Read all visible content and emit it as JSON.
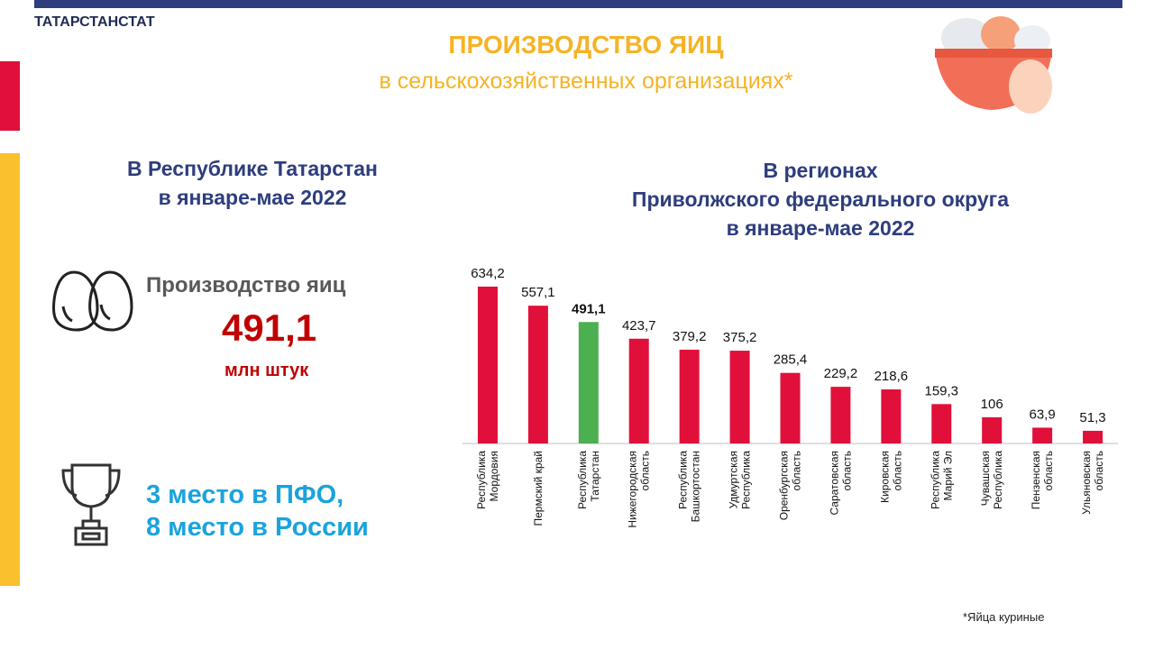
{
  "header": {
    "org": "ТАТАРСТАНСТАТ",
    "title": "ПРОИЗВОДСТВО ЯИЦ",
    "subtitle": "в сельскохозяйственных организациях*"
  },
  "left": {
    "heading": [
      "В Республике Татарстан",
      "в январе-мае 2022"
    ],
    "label": "Производство яиц",
    "value": "491,1",
    "unit": "млн штук",
    "rank": [
      "3 место в ПФО,",
      "8 место в России"
    ]
  },
  "footnote": "*Яйца куриные",
  "chart_data": {
    "type": "bar",
    "title": [
      "В регионах",
      "Приволжского федерального округа",
      "в январе-мае 2022"
    ],
    "categories": [
      "Республика\nМордовия",
      "Пермский край",
      "Республика\nТатарстан",
      "Нижегородская\nобласть",
      "Республика\nБашкортостан",
      "Удмуртская\nРеспублика",
      "Оренбургская\nобласть",
      "Саратовская\nобласть",
      "Кировская\nобласть",
      "Республика\nМарий Эл",
      "Чувашская\nРеспублика",
      "Пензенская\nобласть",
      "Ульяновская\nобласть"
    ],
    "values": [
      634.2,
      557.1,
      491.1,
      423.7,
      379.2,
      375.2,
      285.4,
      229.2,
      218.6,
      159.3,
      106,
      63.9,
      51.3
    ],
    "value_labels": [
      "634,2",
      "557,1",
      "491,1",
      "423,7",
      "379,2",
      "375,2",
      "285,4",
      "229,2",
      "218,6",
      "159,3",
      "106",
      "63,9",
      "51,3"
    ],
    "colors": [
      "#e0103a",
      "#e0103a",
      "#4caf50",
      "#e0103a",
      "#e0103a",
      "#e0103a",
      "#e0103a",
      "#e0103a",
      "#e0103a",
      "#e0103a",
      "#e0103a",
      "#e0103a",
      "#e0103a"
    ]
  }
}
